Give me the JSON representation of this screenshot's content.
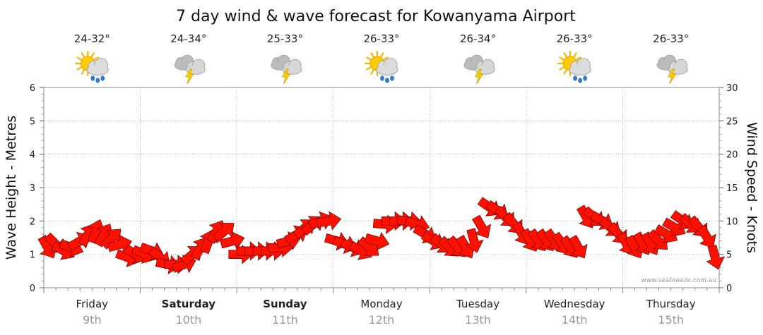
{
  "chart_data": {
    "type": "line",
    "title": "7 day wind & wave forecast for Kowanyama Airport",
    "ylabel_left": "Wave Height - Metres",
    "ylabel_right": "Wind Speed - Knots",
    "ylim_left": [
      0,
      6
    ],
    "ylim_right": [
      0,
      30
    ],
    "yticks_left": [
      "0",
      "1",
      "2",
      "3",
      "4",
      "5",
      "6"
    ],
    "yticks_right": [
      "0",
      "5",
      "10",
      "15",
      "20",
      "25",
      "30"
    ],
    "grid": true,
    "days": [
      {
        "name": "Friday",
        "date": "9th",
        "bold": false,
        "temps": "24-32°",
        "weather_icon": "sun-cloud-rain-icon"
      },
      {
        "name": "Saturday",
        "date": "10th",
        "bold": true,
        "temps": "24-34°",
        "weather_icon": "cloud-thunder-icon"
      },
      {
        "name": "Sunday",
        "date": "11th",
        "bold": true,
        "temps": "25-33°",
        "weather_icon": "cloud-thunder-icon"
      },
      {
        "name": "Monday",
        "date": "12th",
        "bold": false,
        "temps": "26-33°",
        "weather_icon": "sun-cloud-rain-icon"
      },
      {
        "name": "Tuesday",
        "date": "13th",
        "bold": false,
        "temps": "26-34°",
        "weather_icon": "cloud-thunder-icon"
      },
      {
        "name": "Wednesday",
        "date": "14th",
        "bold": false,
        "temps": "26-33°",
        "weather_icon": "sun-cloud-rain-icon"
      },
      {
        "name": "Thursday",
        "date": "15th",
        "bold": false,
        "temps": "26-33°",
        "weather_icon": "cloud-thunder-icon"
      }
    ],
    "series": [
      {
        "name": "Wind Speed - Knots",
        "values_knots": [
          6,
          6.5,
          5.5,
          6,
          7,
          8,
          8.5,
          8,
          7.5,
          6.5,
          4.5,
          5,
          5,
          5.5,
          4.5,
          3.5,
          3.5,
          3.5,
          5,
          6,
          7,
          8.5,
          8.5,
          7,
          5,
          5.5,
          5.5,
          5.5,
          5.5,
          6,
          7,
          8,
          9,
          9.5,
          10,
          10,
          7,
          6.5,
          6,
          5.5,
          6,
          7,
          9.5,
          10,
          10,
          10,
          9.5,
          8,
          7,
          6.5,
          6,
          6,
          6,
          7,
          9,
          12,
          11.5,
          10.5,
          9.5,
          8,
          7,
          7,
          7,
          7,
          6.5,
          6,
          6,
          10.5,
          10.5,
          10,
          9,
          8,
          6.5,
          6,
          6.5,
          6.5,
          7,
          8,
          9,
          10,
          9.5,
          9,
          7.5,
          4.5
        ],
        "directions_deg": [
          60,
          45,
          30,
          20,
          330,
          300,
          290,
          300,
          315,
          345,
          20,
          30,
          25,
          20,
          40,
          10,
          0,
          340,
          320,
          300,
          290,
          300,
          320,
          345,
          0,
          0,
          0,
          0,
          0,
          0,
          345,
          330,
          320,
          320,
          340,
          350,
          15,
          20,
          25,
          30,
          40,
          15,
          5,
          0,
          0,
          5,
          15,
          30,
          30,
          40,
          45,
          50,
          60,
          75,
          60,
          35,
          35,
          45,
          50,
          60,
          60,
          55,
          55,
          55,
          55,
          55,
          60,
          60,
          40,
          30,
          40,
          50,
          60,
          60,
          60,
          60,
          45,
          30,
          30,
          35,
          40,
          50,
          60,
          75
        ]
      }
    ]
  },
  "credit": "www.seabreeze.com.au"
}
